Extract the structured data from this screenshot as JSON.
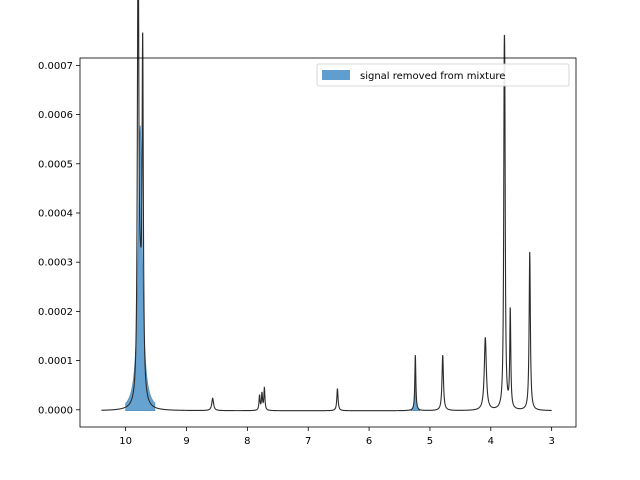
{
  "chart_data": {
    "type": "line",
    "title": "",
    "xlabel": "",
    "ylabel": "",
    "xlim": [
      10.75,
      2.6
    ],
    "x_inverted": true,
    "ylim": [
      -3.5e-05,
      0.000715
    ],
    "x_ticks": [
      10,
      9,
      8,
      7,
      6,
      5,
      4,
      3
    ],
    "y_ticks": [
      0.0,
      0.0001,
      0.0002,
      0.0003,
      0.0004,
      0.0005,
      0.0006,
      0.0007
    ],
    "y_tick_labels": [
      "0.0000",
      "0.0001",
      "0.0002",
      "0.0003",
      "0.0004",
      "0.0005",
      "0.0006",
      "0.0007"
    ],
    "grid": false,
    "legend": {
      "placement": "top-right",
      "entries": [
        "signal removed from mixture"
      ]
    },
    "colors": {
      "mixture": "#2b2b2b",
      "removed": "#5f9ecf"
    },
    "x_range": [
      10.4,
      3.0
    ],
    "baseline": -2e-06,
    "series": [
      {
        "kind": "line",
        "peaks": [
          {
            "center": 9.8,
            "height": 0.00055,
            "width": 0.012
          },
          {
            "center": 9.79,
            "height": 0.00049,
            "width": 0.01
          },
          {
            "center": 9.72,
            "height": 0.00068,
            "width": 0.012
          },
          {
            "center": 9.76,
            "height": 0.0002,
            "width": 0.03
          },
          {
            "center": 8.57,
            "height": 2.5e-05,
            "width": 0.018
          },
          {
            "center": 7.8,
            "height": 3e-05,
            "width": 0.01
          },
          {
            "center": 7.76,
            "height": 3.4e-05,
            "width": 0.01
          },
          {
            "center": 7.72,
            "height": 4.5e-05,
            "width": 0.01
          },
          {
            "center": 6.52,
            "height": 4.5e-05,
            "width": 0.012
          },
          {
            "center": 5.24,
            "height": 0.000113,
            "width": 0.01
          },
          {
            "center": 4.79,
            "height": 0.000113,
            "width": 0.014
          },
          {
            "center": 4.09,
            "height": 0.000148,
            "width": 0.02
          },
          {
            "center": 3.78,
            "height": 0.0005,
            "width": 0.01
          },
          {
            "center": 3.77,
            "height": 0.00045,
            "width": 0.01
          },
          {
            "center": 3.68,
            "height": 0.0002,
            "width": 0.01
          },
          {
            "center": 3.36,
            "height": 0.000322,
            "width": 0.012
          }
        ]
      },
      {
        "kind": "area",
        "peaks": [
          {
            "center": 9.76,
            "height": 0.00058,
            "width": 0.04
          },
          {
            "center": 5.24,
            "height": 6e-05,
            "width": 0.012
          }
        ]
      }
    ]
  }
}
